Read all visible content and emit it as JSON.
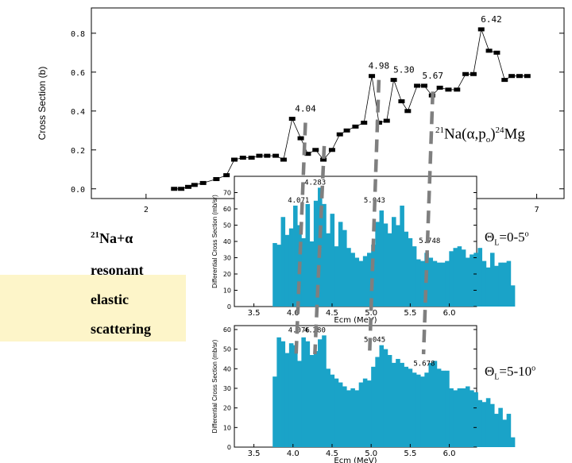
{
  "labels": {
    "reaction": {
      "pre": "21",
      "a": "Na(",
      "alpha": "α",
      "b": ",p",
      "sub": "o",
      "c": ")",
      "pre2": "24",
      "d": "Mg"
    },
    "resonant": {
      "pre": "21",
      "text": "Na+",
      "alpha": "α"
    },
    "resonant_line2": "resonant",
    "resonant_line3": "elastic",
    "resonant_line4": "scattering",
    "theta1": {
      "theta": "Θ",
      "sub": "L",
      "text": "=0-5",
      "sup": "o"
    },
    "theta2": {
      "theta": "Θ",
      "sub": "L",
      "text": "=5-10",
      "sup": "o"
    }
  },
  "colors": {
    "bar": "#1aa3c8",
    "dash": "#7f7f7f",
    "note_bg": "#fdf5c9"
  },
  "chart_data": [
    {
      "type": "line",
      "ylabel": "Cross Section (b)",
      "xlabel": "",
      "xlim": [
        1.3,
        7.35
      ],
      "ylim": [
        -0.05,
        0.93
      ],
      "xticks": [
        2,
        7
      ],
      "xtick_labels": [
        "2",
        "7"
      ],
      "yticks": [
        0.0,
        0.2,
        0.4,
        0.6,
        0.8
      ],
      "ytick_labels": [
        "0.0",
        "0.2",
        "0.4",
        "0.6",
        "0.8"
      ],
      "x": [
        2.36,
        2.45,
        2.54,
        2.62,
        2.73,
        2.9,
        3.03,
        3.13,
        3.24,
        3.35,
        3.45,
        3.55,
        3.66,
        3.76,
        3.87,
        3.98,
        4.07,
        4.17,
        4.27,
        4.38,
        4.48,
        4.57,
        4.68,
        4.79,
        4.89,
        4.98,
        5.08,
        5.17,
        5.27,
        5.35,
        5.47,
        5.56,
        5.66,
        5.76,
        5.87,
        5.98,
        6.09,
        6.19,
        6.29,
        6.39,
        6.49,
        6.59,
        6.68,
        6.78,
        6.88
      ],
      "y": [
        0.0,
        0.0,
        0.01,
        0.02,
        0.03,
        0.05,
        0.07,
        0.15,
        0.16,
        0.16,
        0.17,
        0.17,
        0.17,
        0.15,
        0.36,
        0.26,
        0.18,
        0.2,
        0.15,
        0.2,
        0.28,
        0.3,
        0.32,
        0.34,
        0.58,
        0.34,
        0.35,
        0.56,
        0.45,
        0.4,
        0.53,
        0.53,
        0.48,
        0.52,
        0.51,
        0.51,
        0.59,
        0.59,
        0.82,
        0.71,
        0.7,
        0.56,
        0.58,
        0.58,
        0.58
      ],
      "annotations": [
        {
          "text": "4.04",
          "x": 4.04,
          "y": 0.36
        },
        {
          "text": "4.98",
          "x": 4.98,
          "y": 0.58
        },
        {
          "text": "5.30",
          "x": 5.3,
          "y": 0.56
        },
        {
          "text": "5.67",
          "x": 5.67,
          "y": 0.53
        },
        {
          "text": "6.42",
          "x": 6.42,
          "y": 0.82
        }
      ]
    },
    {
      "type": "bar",
      "ylabel": "Differential Cross Section (mb/sr)",
      "xlabel": "Ecm (MeV)",
      "xlim": [
        3.25,
        6.35
      ],
      "ylim": [
        0,
        80
      ],
      "xticks": [
        3.5,
        4.0,
        4.5,
        5.0,
        5.5,
        6.0
      ],
      "xtick_labels": [
        "3.5",
        "4.0",
        "4.5",
        "5.0",
        "5.5",
        "6.0"
      ],
      "yticks": [
        0,
        10,
        20,
        30,
        40,
        50,
        60,
        70
      ],
      "ytick_labels": [
        "0",
        "10",
        "20",
        "30",
        "40",
        "50",
        "60",
        "70"
      ],
      "bin_start": 3.74,
      "bin_width": 0.0525,
      "values": [
        39,
        38,
        55,
        44,
        48,
        62,
        50,
        42,
        63,
        40,
        65,
        73,
        63,
        45,
        57,
        37,
        52,
        47,
        36,
        33,
        30,
        28,
        31,
        33,
        38,
        52,
        59,
        51,
        45,
        55,
        50,
        62,
        46,
        42,
        37,
        29,
        28,
        33,
        30,
        28,
        27,
        27,
        28,
        34,
        36,
        37,
        35,
        30,
        32,
        33,
        36,
        28,
        24,
        33,
        25,
        27,
        27,
        28,
        13
      ],
      "annotations": [
        {
          "text": "4.071",
          "x": 4.071,
          "y": 62
        },
        {
          "text": "4.283",
          "x": 4.283,
          "y": 73
        },
        {
          "text": "5.043",
          "x": 5.043,
          "y": 62
        },
        {
          "text": "5.748",
          "x": 5.748,
          "y": 37
        }
      ]
    },
    {
      "type": "bar",
      "ylabel": "Differential Cross Section (mb/sr)",
      "xlabel": "Ecm (MeV)",
      "xlim": [
        3.25,
        6.35
      ],
      "ylim": [
        0,
        62
      ],
      "xticks": [
        3.5,
        4.0,
        4.5,
        5.0,
        5.5,
        6.0
      ],
      "xtick_labels": [
        "3.5",
        "4.0",
        "4.5",
        "5.0",
        "5.5",
        "6.0"
      ],
      "yticks": [
        0,
        10,
        20,
        30,
        40,
        50,
        60
      ],
      "ytick_labels": [
        "0",
        "10",
        "20",
        "30",
        "40",
        "50",
        "60"
      ],
      "bin_start": 3.74,
      "bin_width": 0.0525,
      "values": [
        36,
        56,
        54,
        48,
        53,
        52,
        44,
        56,
        54,
        47,
        49,
        55,
        57,
        40,
        37,
        35,
        33,
        31,
        29,
        30,
        29,
        33,
        35,
        34,
        41,
        46,
        52,
        50,
        47,
        43,
        45,
        43,
        41,
        40,
        38,
        37,
        36,
        38,
        43,
        44,
        40,
        39,
        39,
        30,
        29,
        30,
        30,
        31,
        29,
        28,
        24,
        23,
        25,
        22,
        17,
        20,
        14,
        17,
        5
      ],
      "annotations": [
        {
          "text": "4.076",
          "x": 4.076,
          "y": 57
        },
        {
          "text": "4.280",
          "x": 4.28,
          "y": 57
        },
        {
          "text": "5.045",
          "x": 5.045,
          "y": 52
        },
        {
          "text": "5.678",
          "x": 5.678,
          "y": 40
        }
      ]
    }
  ],
  "guide_lines": [
    4.04,
    4.28,
    4.98,
    5.67
  ]
}
